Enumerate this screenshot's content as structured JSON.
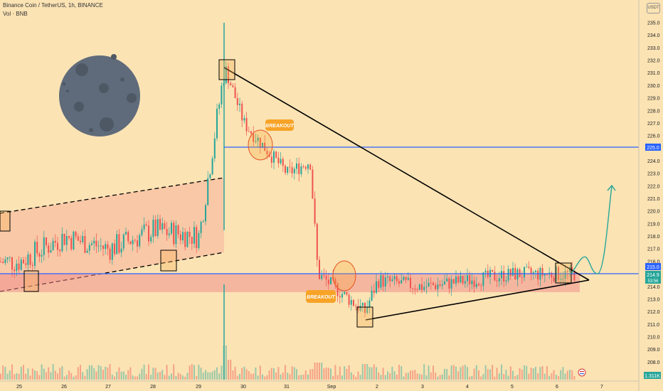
{
  "header": {
    "title": "Binance Coin / TetherUS, 1h, BINANCE",
    "volume_label": "Vol · BNB",
    "currency_badge": "USDT"
  },
  "colors": {
    "background": "#fbe3b4",
    "candle_up": "#26a69a",
    "candle_down": "#ef5350",
    "level_line": "#2962ff",
    "channel_fill": "#f7b39b",
    "zone_fill": "#f08a8a",
    "trend_line": "#000000",
    "projection": "#26a69a",
    "annotation_fill": "#f7a327",
    "moon": "#5f6b7a"
  },
  "annotations": {
    "breakout_top": "BREAKOUT",
    "breakout_bottom": "BREAKOUT"
  },
  "price_tags": {
    "level_225": "225.0",
    "level_215": "215.0",
    "last_price": "214.9",
    "countdown": "53:56",
    "volume": "1.311K"
  },
  "chart_data": {
    "type": "candlestick",
    "title": "Binance Coin / TetherUS, 1h, BINANCE",
    "x_tick_labels": [
      "25",
      "26",
      "27",
      "28",
      "29",
      "30",
      "31",
      "Sep",
      "2",
      "3",
      "4",
      "5",
      "6",
      "7"
    ],
    "y_tick_labels": [
      "235.0",
      "234.0",
      "233.0",
      "232.0",
      "231.0",
      "230.0",
      "229.0",
      "228.0",
      "227.0",
      "226.0",
      "225.0",
      "224.0",
      "223.0",
      "222.0",
      "221.0",
      "220.0",
      "219.0",
      "218.0",
      "217.0",
      "216.0",
      "215.0",
      "214.0",
      "213.0",
      "212.0",
      "211.0",
      "210.0",
      "209.0",
      "208.0"
    ],
    "ylim": [
      207.5,
      235.5
    ],
    "grid": false,
    "horizontal_levels": [
      225.0,
      215.0
    ],
    "last_price": 214.9,
    "price_path": [
      {
        "x": "25",
        "price": 216.0
      },
      {
        "x": "26",
        "price": 218.0
      },
      {
        "x": "27",
        "price": 217.0
      },
      {
        "x": "28",
        "price": 218.5
      },
      {
        "x": "29",
        "price": 218.0
      },
      {
        "x": "29.6",
        "price": 231.5
      },
      {
        "x": "30",
        "price": 227.0
      },
      {
        "x": "30.5",
        "price": 225.0
      },
      {
        "x": "31",
        "price": 223.0
      },
      {
        "x": "31.5",
        "price": 224.0
      },
      {
        "x": "Sep",
        "price": 215.0
      },
      {
        "x": "1.6",
        "price": 212.0
      },
      {
        "x": "2",
        "price": 214.5
      },
      {
        "x": "3",
        "price": 214.0
      },
      {
        "x": "4",
        "price": 214.5
      },
      {
        "x": "5",
        "price": 215.0
      },
      {
        "x": "6",
        "price": 215.0
      }
    ],
    "triangle": {
      "upper_from": 231.0,
      "lower_from": 211.0,
      "apex": 214.2
    },
    "projection_target": 222.0
  }
}
